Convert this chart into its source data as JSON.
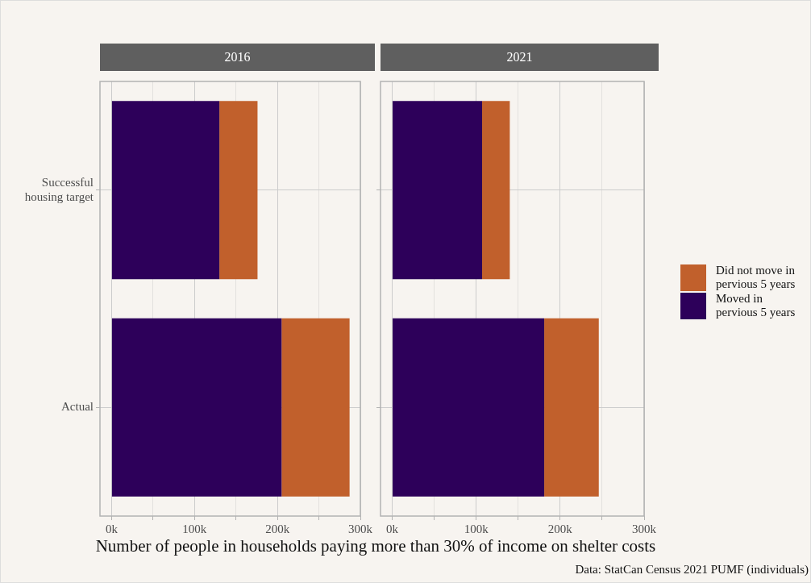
{
  "chart_data": [
    {
      "type": "bar",
      "orientation": "horizontal",
      "stacked": true,
      "title": "2016",
      "xlabel": "Number of people in households paying more than 30% of income on shelter costs",
      "categories": [
        "Successful housing target",
        "Actual"
      ],
      "series": [
        {
          "color": "#2d005a",
          "values": [
            130000,
            205000
          ]
        },
        {
          "color": "#c1602c",
          "values": [
            46000,
            82000
          ]
        }
      ],
      "xlim": [
        -14000,
        300000
      ],
      "xticks": [
        {
          "value": 0,
          "label": "0k"
        },
        {
          "value": 50000,
          "label": null
        },
        {
          "value": 100000,
          "label": "100k"
        },
        {
          "value": 150000,
          "label": null
        },
        {
          "value": 200000,
          "label": "200k"
        },
        {
          "value": 250000,
          "label": null
        },
        {
          "value": 300000,
          "label": "300k"
        }
      ],
      "grid": true
    },
    {
      "type": "bar",
      "orientation": "horizontal",
      "stacked": true,
      "title": "2021",
      "categories": [
        null,
        null
      ],
      "series": [
        {
          "name": "Moved in pervious 5 years",
          "color": "#2d005a",
          "values": [
            107000,
            181000
          ]
        },
        {
          "name": "Did not move in pervious 5 years",
          "color": "#c1602c",
          "values": [
            33000,
            65000
          ]
        }
      ],
      "xlim": [
        -14000,
        300000
      ],
      "xticks": [
        {
          "value": 0,
          "label": "0k"
        },
        {
          "value": 50000,
          "label": null
        },
        {
          "value": 100000,
          "label": "100k"
        },
        {
          "value": 150000,
          "label": null
        },
        {
          "value": 200000,
          "label": "200k"
        },
        {
          "value": 250000,
          "label": null
        },
        {
          "value": 300000,
          "label": "300k"
        }
      ],
      "grid": true,
      "tick_labels": "x",
      "legend": "right",
      "annotations": [
        "Data: StatCan Census 2021 PUMF (individuals)"
      ]
    }
  ]
}
